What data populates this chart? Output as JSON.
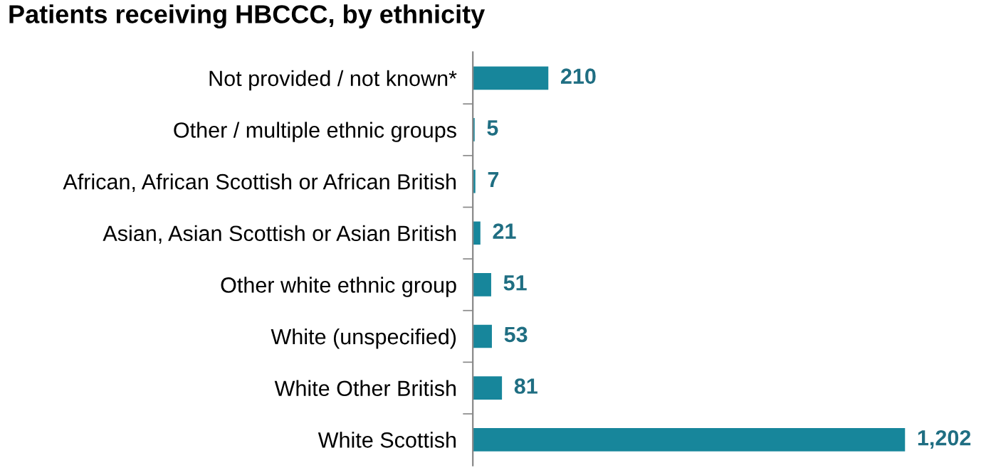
{
  "chart_data": {
    "type": "bar",
    "orientation": "horizontal",
    "title": "Patients receiving HBCCC, by ethnicity",
    "categories": [
      "Not provided / not known*",
      "Other / multiple ethnic groups",
      "African, African Scottish or African British",
      "Asian, Asian Scottish or Asian British",
      "Other white ethnic group",
      "White (unspecified)",
      "White Other British",
      "White Scottish"
    ],
    "values": [
      210,
      5,
      7,
      21,
      51,
      53,
      81,
      1202
    ],
    "value_labels": [
      "210",
      "5",
      "7",
      "21",
      "51",
      "53",
      "81",
      "1,202"
    ],
    "color": "#17869b",
    "grid": false,
    "legend": false
  }
}
